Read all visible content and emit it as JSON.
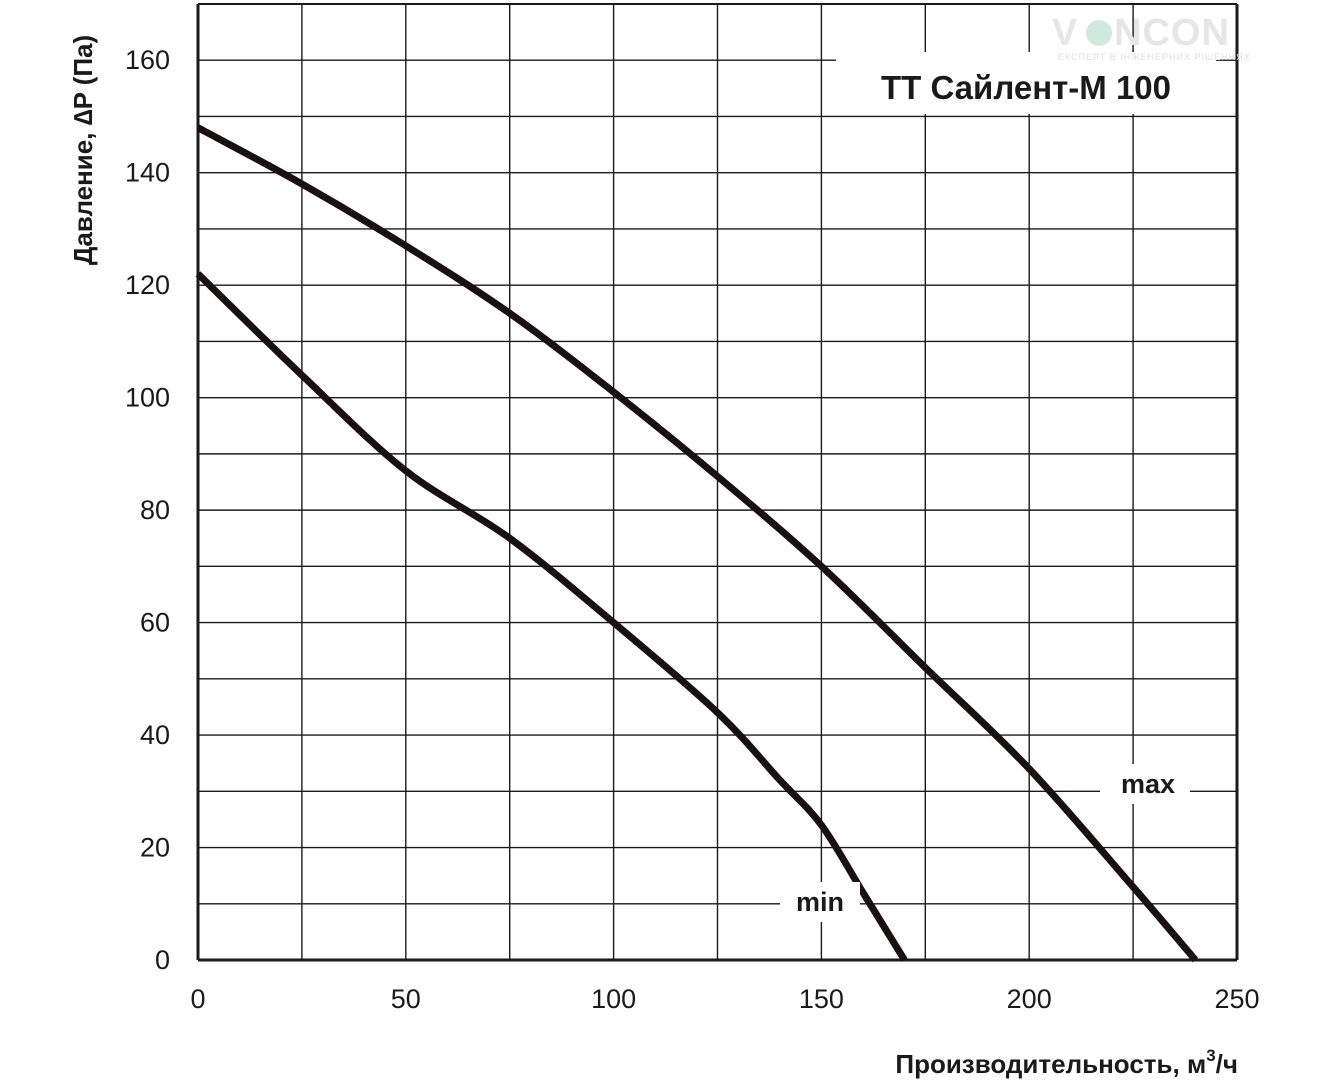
{
  "logo": {
    "brand_left": "V",
    "brand_right": "NCON",
    "tagline": "ЕКСПЕРТ В ІНЖЕНЕРНИХ РІШЕННЯХ",
    "accent": "#7fc8b0"
  },
  "chart_data": {
    "type": "line",
    "title": "ТТ Сайлент-М 100",
    "xlabel": "Производительность, м",
    "xlabel_sup": "3",
    "xlabel_suffix": "/ч",
    "ylabel": "Давление, ∆P (Па)",
    "xlim": [
      0,
      250
    ],
    "ylim": [
      0,
      170
    ],
    "x_ticks": [
      0,
      50,
      100,
      150,
      200,
      250
    ],
    "y_ticks": [
      0,
      20,
      40,
      60,
      80,
      100,
      120,
      140,
      160
    ],
    "x_minor_step": 25,
    "y_minor_step": 10,
    "grid": true,
    "series": [
      {
        "name": "max",
        "x": [
          0,
          25,
          50,
          75,
          100,
          125,
          150,
          175,
          200,
          225,
          240
        ],
        "y": [
          148,
          138,
          127,
          115,
          101,
          86,
          70,
          52,
          34,
          13,
          0
        ]
      },
      {
        "name": "min",
        "x": [
          0,
          25,
          50,
          75,
          100,
          125,
          140,
          150,
          160,
          165,
          170
        ],
        "y": [
          122,
          104,
          87,
          75,
          60,
          44,
          32,
          24,
          12,
          6,
          0
        ]
      }
    ],
    "colors": {
      "line": "#1a1010",
      "grid": "#1a1a1a",
      "text": "#1a1a1a"
    }
  }
}
